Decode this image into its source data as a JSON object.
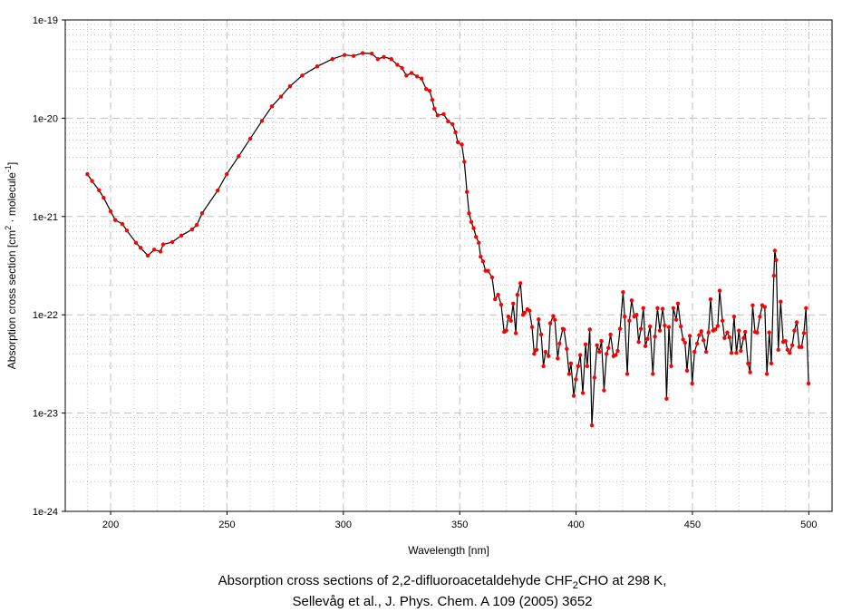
{
  "chart_data": {
    "type": "line",
    "title": "",
    "caption": {
      "line1_pre": "Absorption cross sections of 2,2-difluoroacetaldehyde CHF",
      "line1_sub": "2",
      "line1_post": "CHO at 298 K,",
      "line2": "Sellevåg et al., J. Phys. Chem. A 109 (2005) 3652"
    },
    "xlabel": "Wavelength [nm]",
    "ylabel": {
      "pre": "Absorption cross section [cm",
      "sup1": "2",
      "mid": " · molecule",
      "sup2": "-1",
      "post": "]"
    },
    "xlim": [
      180.5,
      510
    ],
    "ylim": [
      1e-24,
      1e-19
    ],
    "yscale": "log",
    "grid": true,
    "x_ticks": [
      200,
      250,
      300,
      350,
      400,
      450,
      500
    ],
    "x_tick_labels": [
      "200",
      "250",
      "300",
      "350",
      "400",
      "450",
      "500"
    ],
    "y_ticks": [
      1e-24,
      1e-23,
      1e-22,
      1e-21,
      1e-20,
      1e-19
    ],
    "y_tick_labels": [
      "1e-24",
      "1e-23",
      "1e-22",
      "1e-21",
      "1e-20",
      "1e-19"
    ],
    "colors": {
      "line": "#000000",
      "marker": "#ff0000",
      "grid": "#c0c0c0"
    },
    "series": [
      {
        "name": "CHF2CHO",
        "x": [
          190,
          192,
          195,
          197,
          200,
          202,
          205,
          207,
          210.9,
          212.9,
          216,
          218.7,
          221.4,
          222.6,
          226.5,
          230.4,
          235,
          237,
          239.3,
          246,
          249.9,
          255,
          260,
          265,
          269.3,
          273.2,
          277.1,
          282.3,
          288.8,
          295.3,
          300.5,
          304.4,
          308.3,
          312.2,
          314.8,
          317.4,
          320.6,
          323.2,
          325.2,
          327.1,
          329.3,
          331.7,
          333.6,
          335.6,
          337.1,
          338.2,
          339.1,
          340.5,
          343.1,
          345,
          346.9,
          348.2,
          349.2,
          350.9,
          352,
          353.1,
          354,
          355,
          356,
          357,
          358.2,
          359,
          360,
          361.1,
          362.2,
          363.9,
          365.2,
          366.5,
          367.8,
          369.1,
          370,
          370.9,
          372,
          373,
          374.1,
          374.8,
          376.1,
          377.2,
          377.9,
          379.1,
          380,
          381.1,
          382,
          383,
          383.9,
          385,
          386,
          386.9,
          388.2,
          388.9,
          390.2,
          390.9,
          392.1,
          392.9,
          394.3,
          394.8,
          396,
          397,
          397.8,
          399,
          399.9,
          400.9,
          401.8,
          402.9,
          404.1,
          404.8,
          405.9,
          406.8,
          407.9,
          409,
          410,
          410.9,
          412,
          413.1,
          413.9,
          414.8,
          416.1,
          417,
          417.9,
          418.9,
          420.2,
          420.9,
          422,
          422.9,
          423.9,
          425,
          426,
          426.9,
          427.9,
          428.9,
          429.8,
          430.7,
          431.8,
          433,
          433.9,
          435,
          436,
          437.2,
          438.1,
          438.9,
          439.9,
          440.9,
          441.8,
          443,
          443.8,
          445,
          446,
          446.8,
          447.7,
          448.9,
          449.9,
          450.9,
          452,
          452.9,
          453.8,
          454.8,
          455.9,
          456.9,
          457.8,
          458.9,
          459.8,
          460.9,
          461.7,
          462.9,
          463.8,
          465,
          465.9,
          466.8,
          467.9,
          468.9,
          470,
          470.8,
          472,
          472.7,
          473.9,
          474.8,
          475.9,
          476.9,
          477.8,
          479,
          480,
          481.1,
          482,
          483,
          483.9,
          485,
          485.4,
          486,
          486.9,
          487.9,
          489,
          490,
          490.9,
          491.8,
          492.9,
          493.8,
          494.8,
          495.9,
          496.9,
          497.9,
          498.8,
          499.9
        ],
        "y": [
          2.7e-21,
          2.3e-21,
          1.85e-21,
          1.55e-21,
          1.13e-21,
          9.2e-22,
          8.4e-22,
          7.2e-22,
          5.4e-22,
          4.8e-22,
          4e-22,
          4.6e-22,
          4.4e-22,
          5.2e-22,
          5.5e-22,
          6.4e-22,
          7.4e-22,
          8.2e-22,
          1.08e-21,
          1.84e-21,
          2.7e-21,
          4.1e-21,
          6.2e-21,
          9.4e-21,
          1.32e-20,
          1.66e-20,
          2.12e-20,
          2.72e-20,
          3.37e-20,
          4e-20,
          4.4e-20,
          4.3e-20,
          4.6e-20,
          4.55e-20,
          4e-20,
          4.2e-20,
          4e-20,
          3.5e-20,
          3.25e-20,
          2.72e-20,
          2.88e-20,
          2.66e-20,
          2.53e-20,
          1.98e-20,
          1.9e-20,
          1.54e-20,
          1.25e-20,
          1.07e-20,
          1.1e-20,
          9.3e-21,
          8.7e-21,
          7.2e-21,
          5.7e-21,
          5.4e-21,
          3.6e-21,
          1.78e-21,
          1.08e-21,
          8.8e-22,
          7.6e-22,
          6.2e-22,
          5.4e-22,
          3.9e-22,
          3.5e-22,
          2.8e-22,
          2.8e-22,
          2.4e-22,
          1.44e-22,
          1.6e-22,
          1.27e-22,
          6.7e-23,
          6.9e-23,
          9.6e-23,
          8.7e-23,
          1.3e-22,
          6.5e-23,
          1.6e-22,
          2.1e-22,
          1e-22,
          1.05e-22,
          1.14e-22,
          1.1e-22,
          7.5e-23,
          4e-23,
          4.4e-23,
          9e-23,
          6.3e-23,
          3e-23,
          4.2e-23,
          3.8e-23,
          8.2e-23,
          9.7e-23,
          8.9e-23,
          3.6e-23,
          5.1e-23,
          7.2e-23,
          7.1e-23,
          4.5e-23,
          2.5e-23,
          3.2e-23,
          1.5e-23,
          2.2e-23,
          3e-23,
          3.9e-23,
          1.6e-23,
          5e-23,
          3e-23,
          7.1e-23,
          7.5e-24,
          2.3e-23,
          4.9e-23,
          4.2e-23,
          5.4e-23,
          1.7e-23,
          4e-23,
          4.6e-23,
          6.3e-23,
          3.8e-23,
          3.9e-23,
          4.3e-23,
          7.2e-23,
          1.7e-22,
          9.6e-23,
          2.5e-23,
          8.7e-23,
          1.4e-22,
          9.6e-23,
          1e-22,
          5.3e-23,
          7.2e-23,
          1.17e-22,
          4.8e-23,
          5.7e-23,
          7.6e-23,
          2.5e-23,
          6e-23,
          1.17e-22,
          6.9e-23,
          1.15e-22,
          7.8e-23,
          1.4e-23,
          7.5e-23,
          3e-23,
          1.17e-22,
          8.9e-23,
          1.3e-22,
          7.6e-23,
          5.6e-23,
          5.2e-23,
          2.7e-23,
          6.1e-23,
          2e-23,
          4.2e-23,
          5.1e-23,
          6.2e-23,
          6.8e-23,
          5.5e-23,
          4.2e-23,
          6.6e-23,
          1.44e-22,
          6.9e-23,
          7.1e-23,
          7.7e-23,
          1.76e-22,
          8.7e-23,
          5.8e-23,
          6.6e-23,
          5.9e-23,
          4.1e-23,
          9.6e-23,
          4.1e-23,
          6.9e-23,
          4.3e-23,
          5.8e-23,
          6.7e-23,
          3.2e-23,
          2.6e-23,
          1.25e-22,
          6.7e-23,
          6.6e-23,
          9.6e-23,
          1.25e-22,
          1.2e-22,
          2.5e-23,
          6.6e-23,
          3.2e-23,
          2.5e-22,
          4.5e-22,
          3.6e-22,
          4.4e-23,
          1.36e-22,
          5.3e-23,
          5.4e-23,
          4.4e-23,
          4.1e-23,
          4.9e-23,
          6.9e-23,
          8.4e-23,
          4.7e-23,
          4.7e-23,
          6.5e-23,
          1.17e-22,
          2e-23
        ]
      }
    ]
  }
}
